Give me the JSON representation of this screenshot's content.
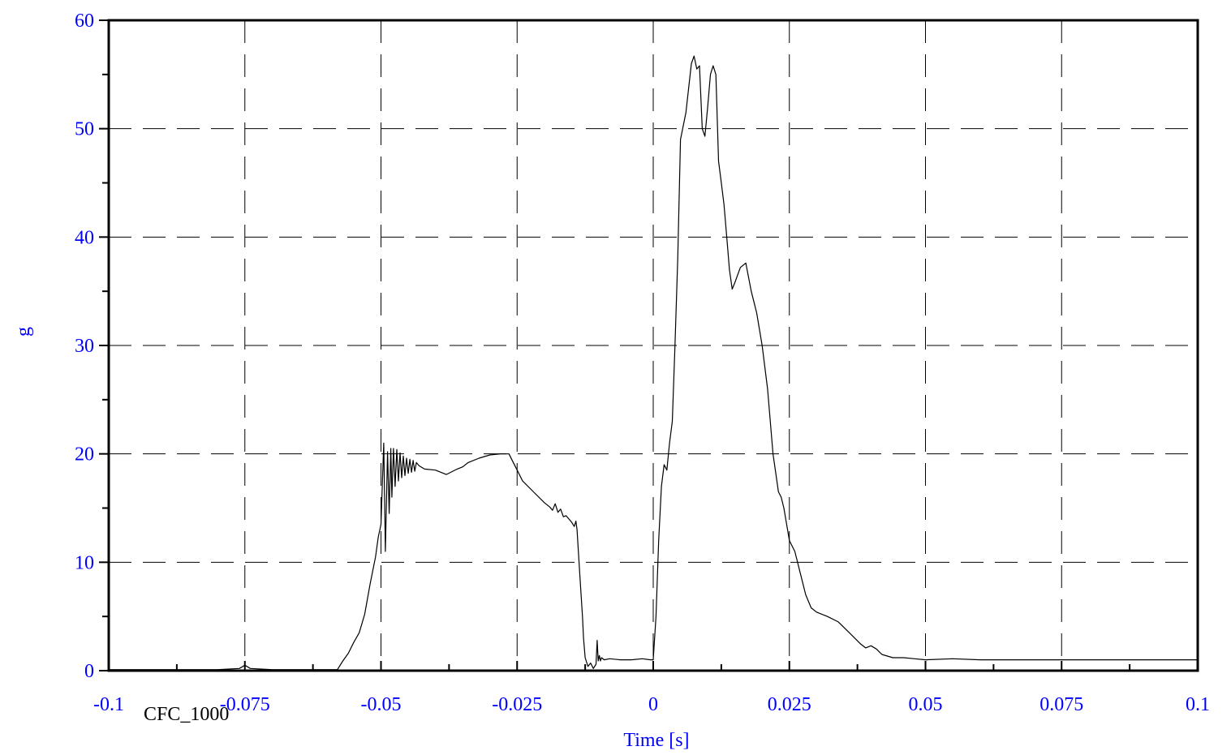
{
  "chart_data": {
    "type": "line",
    "title": "",
    "xlabel": "Time [s]",
    "ylabel": "g",
    "xlim": [
      -0.1,
      0.1
    ],
    "ylim": [
      0,
      60
    ],
    "x_ticks": [
      -0.1,
      -0.075,
      -0.05,
      -0.025,
      0,
      0.025,
      0.05,
      0.075,
      0.1
    ],
    "x_tick_labels": [
      "-0.1",
      "-0.075",
      "-0.05",
      "-0.025",
      "0",
      "0.025",
      "0.05",
      "0.075",
      "0.1"
    ],
    "y_ticks": [
      0,
      10,
      20,
      30,
      40,
      50,
      60
    ],
    "y_tick_labels": [
      "0",
      "10",
      "20",
      "30",
      "40",
      "50",
      "60"
    ],
    "grid": true,
    "grid_style": "dashed",
    "annotation": "CFC_1000",
    "colors": {
      "tick_text": "#0000ff",
      "axis_label": "#0000ff",
      "line": "#000000",
      "frame": "#000000",
      "grid": "#000000"
    },
    "series": [
      {
        "x": [
          -0.1,
          -0.09,
          -0.08,
          -0.076,
          -0.075,
          -0.074,
          -0.07,
          -0.065,
          -0.06,
          -0.058,
          -0.057,
          -0.056,
          -0.055,
          -0.054,
          -0.053,
          -0.052,
          -0.051,
          -0.0505,
          -0.05,
          -0.0495,
          -0.0492,
          -0.0488,
          -0.0485,
          -0.0482,
          -0.048,
          -0.0477,
          -0.0474,
          -0.0471,
          -0.0468,
          -0.0465,
          -0.0462,
          -0.0459,
          -0.0456,
          -0.0453,
          -0.045,
          -0.0447,
          -0.0444,
          -0.0441,
          -0.0438,
          -0.0435,
          -0.043,
          -0.042,
          -0.04,
          -0.038,
          -0.036,
          -0.035,
          -0.034,
          -0.032,
          -0.03,
          -0.028,
          -0.0265,
          -0.026,
          -0.025,
          -0.024,
          -0.022,
          -0.02,
          -0.019,
          -0.0185,
          -0.018,
          -0.0175,
          -0.017,
          -0.0165,
          -0.016,
          -0.0155,
          -0.015,
          -0.0145,
          -0.0142,
          -0.014,
          -0.0135,
          -0.013,
          -0.0128,
          -0.0125,
          -0.012,
          -0.0115,
          -0.011,
          -0.0105,
          -0.0103,
          -0.0101,
          -0.0099,
          -0.0097,
          -0.0095,
          -0.009,
          -0.008,
          -0.006,
          -0.004,
          -0.002,
          -0.0005,
          0,
          0.0005,
          0.001,
          0.0015,
          0.002,
          0.0025,
          0.003,
          0.0035,
          0.004,
          0.0045,
          0.005,
          0.006,
          0.007,
          0.0075,
          0.008,
          0.0085,
          0.009,
          0.0095,
          0.01,
          0.0105,
          0.011,
          0.0115,
          0.012,
          0.0125,
          0.013,
          0.0135,
          0.014,
          0.0145,
          0.015,
          0.0155,
          0.016,
          0.017,
          0.018,
          0.019,
          0.02,
          0.021,
          0.022,
          0.023,
          0.0235,
          0.024,
          0.025,
          0.026,
          0.027,
          0.028,
          0.029,
          0.03,
          0.032,
          0.034,
          0.036,
          0.038,
          0.039,
          0.04,
          0.041,
          0.042,
          0.044,
          0.046,
          0.048,
          0.05,
          0.055,
          0.06,
          0.065,
          0.07,
          0.075,
          0.08,
          0.085,
          0.09,
          0.095,
          0.1
        ],
        "y": [
          0.1,
          0.1,
          0.1,
          0.2,
          0.5,
          0.2,
          0.1,
          0.1,
          0.1,
          0.1,
          0.9,
          1.6,
          2.6,
          3.5,
          5.2,
          8.0,
          10.5,
          12.3,
          13.5,
          21.0,
          11.0,
          20.2,
          14.5,
          20.5,
          16.0,
          20.5,
          17.0,
          20.4,
          17.5,
          20.1,
          17.8,
          19.8,
          18.0,
          19.6,
          18.2,
          19.5,
          18.3,
          19.4,
          18.4,
          19.2,
          18.9,
          18.6,
          18.5,
          18.1,
          18.6,
          18.8,
          19.2,
          19.6,
          19.9,
          20.0,
          20.0,
          19.5,
          18.5,
          17.5,
          16.5,
          15.5,
          15.1,
          14.8,
          15.4,
          14.6,
          14.9,
          14.2,
          14.3,
          14.0,
          13.7,
          13.3,
          13.8,
          13.0,
          9.0,
          5.0,
          3.0,
          1.2,
          0.4,
          0.7,
          0.2,
          0.6,
          2.8,
          0.9,
          1.4,
          0.9,
          1.2,
          1.0,
          1.1,
          1.0,
          1.0,
          1.1,
          1.0,
          1.0,
          5.0,
          12.0,
          17.0,
          19.0,
          18.5,
          21.0,
          23.0,
          30.0,
          38.0,
          49.0,
          51.5,
          56.0,
          56.7,
          55.5,
          55.8,
          50.0,
          49.3,
          52.0,
          55.0,
          55.8,
          55.0,
          47.0,
          45.0,
          43.0,
          40.0,
          37.0,
          35.2,
          35.8,
          36.5,
          37.2,
          37.6,
          35.0,
          33.0,
          30.0,
          26.0,
          20.0,
          16.5,
          16.0,
          15.0,
          12.0,
          11.0,
          9.0,
          7.0,
          5.8,
          5.4,
          5.0,
          4.5,
          3.5,
          2.5,
          2.1,
          2.3,
          2.0,
          1.5,
          1.2,
          1.2,
          1.1,
          1.0,
          1.1,
          1.0,
          1.0,
          1.0,
          1.0,
          1.0,
          1.0,
          1.0,
          1.0,
          1.0
        ]
      }
    ]
  }
}
